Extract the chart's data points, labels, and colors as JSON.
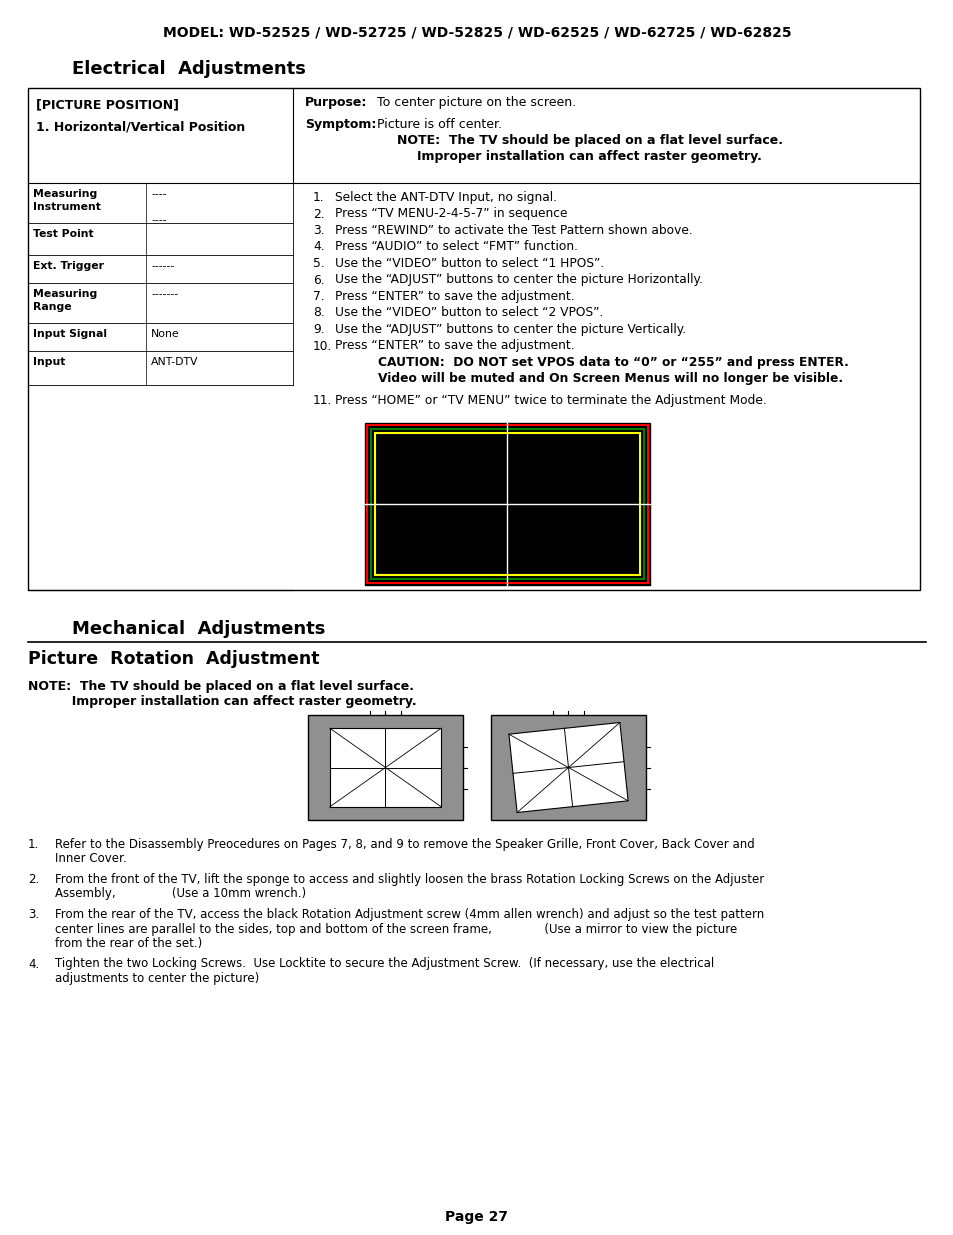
{
  "page_bg": "#ffffff",
  "model_line": "MODEL: WD-52525 / WD-52725 / WD-52825 / WD-62525 / WD-62725 / WD-62825",
  "section1_title": "Electrical  Adjustments",
  "section2_title": "Mechanical  Adjustments",
  "section3_title": "Picture  Rotation  Adjustment",
  "note_bold1": "NOTE:  The TV should be placed on a flat level surface.",
  "note_bold2": "          Improper installation can affect raster geometry.",
  "caution_line1": "CAUTION:  DO NOT set VPOS data to “0” or “255” and press ENTER.",
  "caution_line2": "Video will be muted and On Screen Menus will no longer be visible.",
  "page_number": "Page 27",
  "table_rows": [
    [
      "Measuring\nInstrument",
      "----\n\n----"
    ],
    [
      "Test Point",
      ""
    ],
    [
      "Ext. Trigger",
      "------"
    ],
    [
      "Measuring\nRange",
      "-------"
    ],
    [
      "Input Signal",
      "None"
    ],
    [
      "Input",
      "ANT-DTV"
    ]
  ],
  "steps": [
    "Select the ANT-DTV Input, no signal.",
    "Press “TV MENU-2-4-5-7” in sequence",
    "Press “REWIND” to activate the Test Pattern shown above.",
    "Press “AUDIO” to select “FMT” function.",
    "Use the “VIDEO” button to select “1 HPOS”.",
    "Use the “ADJUST” buttons to center the picture Horizontally.",
    "Press “ENTER” to save the adjustment.",
    "Use the “VIDEO” button to select “2 VPOS”.",
    "Use the “ADJUST” buttons to center the picture Vertically.",
    "Press “ENTER” to save the adjustment.",
    "Press “HOME” or “TV MENU” twice to terminate the Adjustment Mode."
  ],
  "mech_steps": [
    [
      "Refer to the Disassembly Preocedures on Pages 7, 8, and 9 to remove the Speaker Grille, Front Cover, Back Cover and",
      "Inner Cover."
    ],
    [
      "From the front of the TV, lift the sponge to access and slightly loosen the brass Rotation Locking Screws on the Adjuster",
      "Assembly,               (Use a 10mm wrench.)"
    ],
    [
      "From the rear of the TV, access the black Rotation Adjustment screw (4mm allen wrench) and adjust so the test pattern",
      "center lines are parallel to the sides, top and bottom of the screen frame,              (Use a mirror to view the picture",
      "from the rear of the set.)"
    ],
    [
      "Tighten the two Locking Screws.  Use Locktite to secure the Adjustment Screw.  (If necessary, use the electrical",
      "adjustments to center the picture)"
    ]
  ]
}
